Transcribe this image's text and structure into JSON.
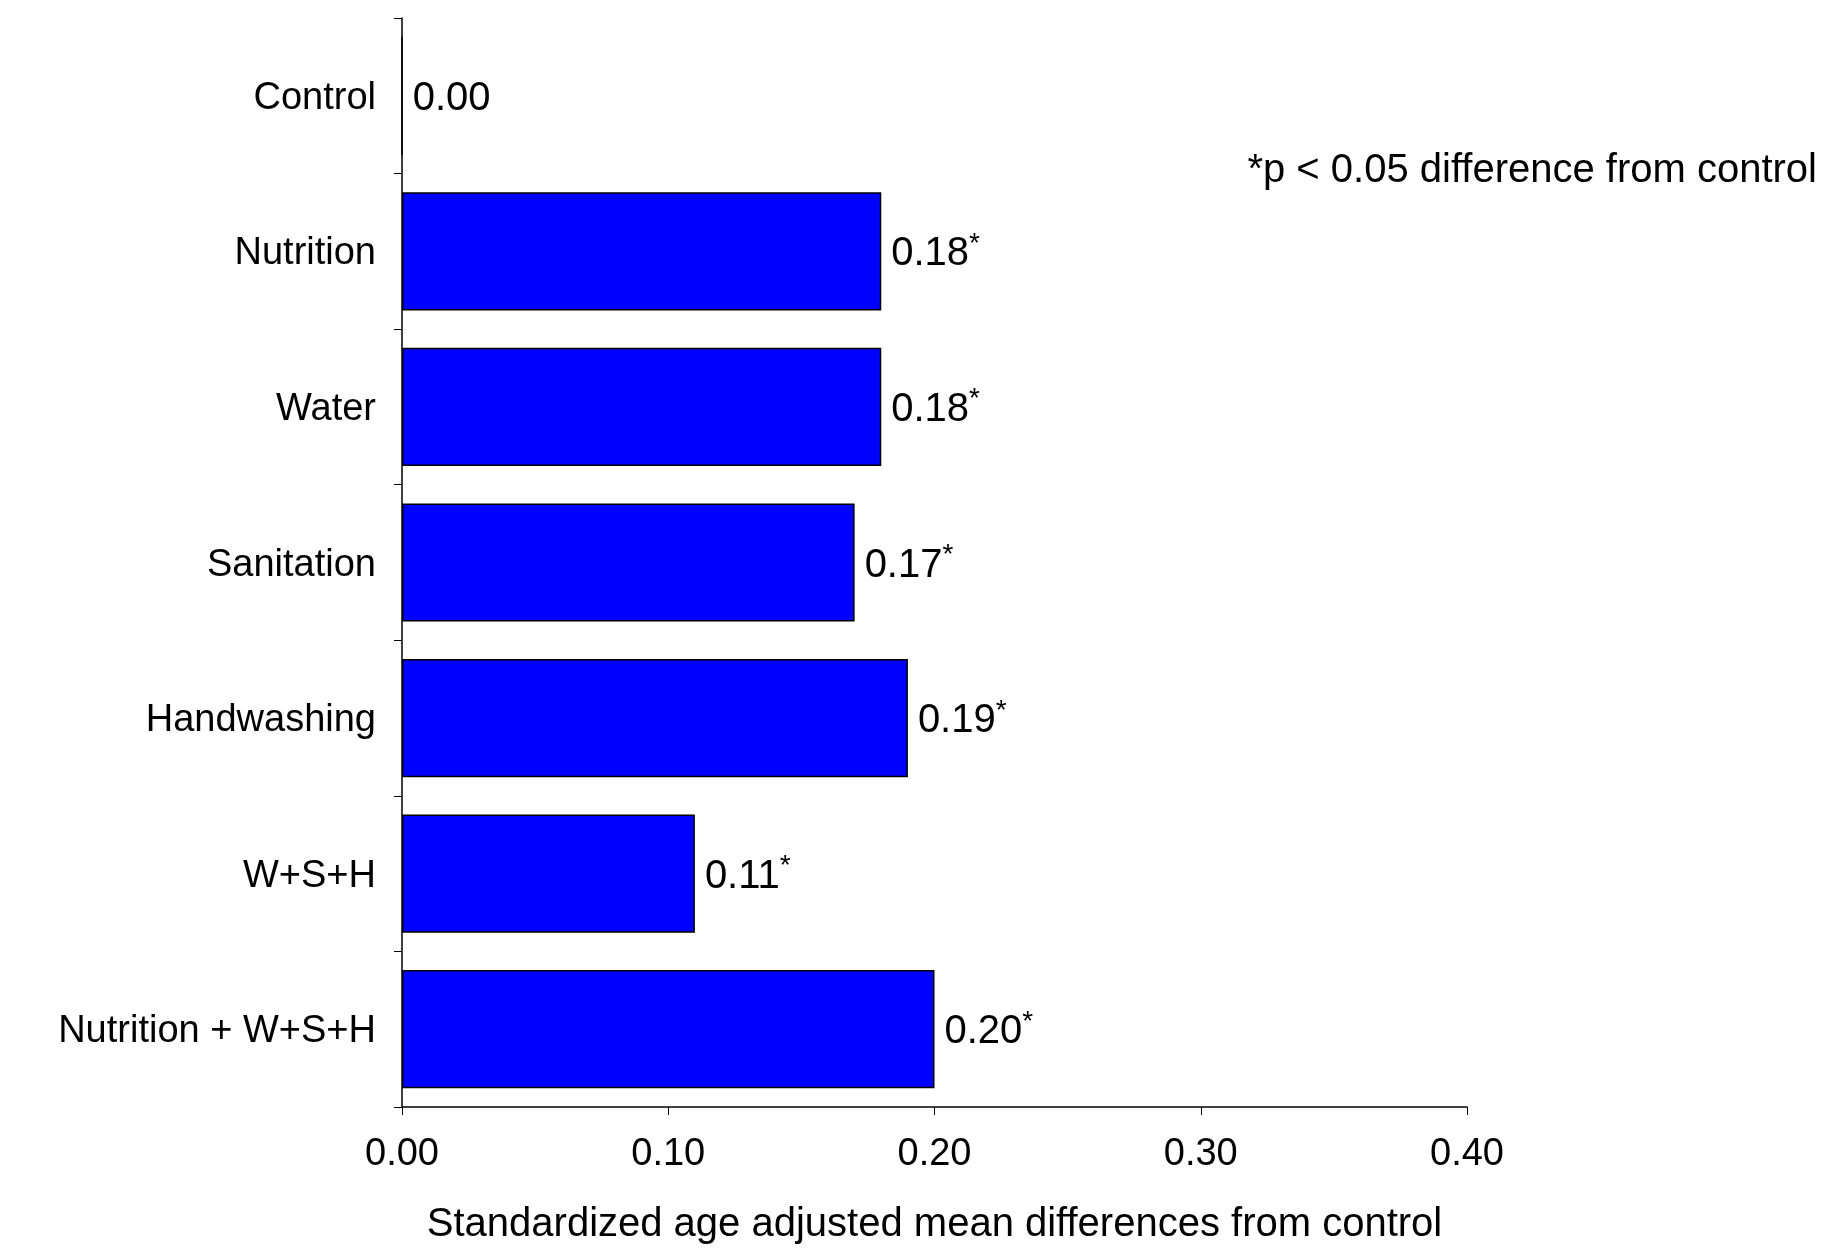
{
  "chart_data": {
    "type": "bar",
    "orientation": "horizontal",
    "xlabel": "Standardized age adjusted mean differences from control",
    "categories": [
      "Control",
      "Nutrition",
      "Water",
      "Sanitation",
      "Handwashing",
      "W+S+H",
      "Nutrition + W+S+H"
    ],
    "values": [
      0,
      0.18,
      0.18,
      0.17,
      0.19,
      0.11,
      0.2
    ],
    "value_labels": [
      "0.00",
      "0.18$^{*}$",
      "0.18$^{*}$",
      "0.17$^{*}$",
      "0.19$^{*}$",
      "0.11$^{*}$",
      "0.20$^{*}$"
    ],
    "color": "#0000ff",
    "xlim": [
      0,
      0.4
    ],
    "xticks": [
      {
        "value": 0,
        "label": "0.00"
      },
      {
        "value": 0.1,
        "label": "0.10"
      },
      {
        "value": 0.2,
        "label": "0.20"
      },
      {
        "value": 0.3,
        "label": "0.30"
      },
      {
        "value": 0.4,
        "label": "0.40"
      }
    ],
    "annotations": [
      "*p < 0.05 difference from control"
    ],
    "grid": false
  }
}
